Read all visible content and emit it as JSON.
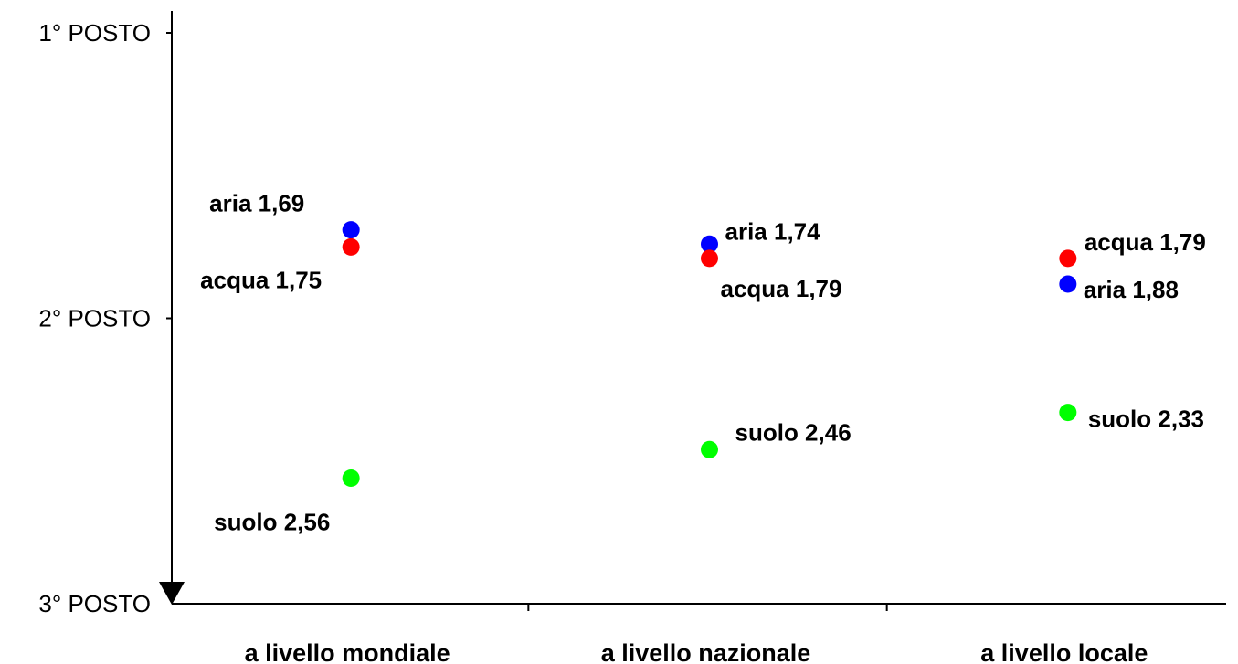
{
  "chart_data": {
    "type": "scatter",
    "categories": [
      "a livello mondiale",
      "a livello nazionale",
      "a livello locale"
    ],
    "y_axis": {
      "ticks": [
        {
          "value": 1,
          "label": "1° POSTO"
        },
        {
          "value": 2,
          "label": "2° POSTO"
        },
        {
          "value": 3,
          "label": "3° POSTO"
        }
      ],
      "ylim": [
        1,
        3
      ],
      "inverted": true
    },
    "grid": false,
    "series": [
      {
        "name": "aria",
        "color": "#0000ff",
        "values": [
          1.69,
          1.74,
          1.88
        ],
        "labels": [
          "aria 1,69",
          "aria 1,74",
          "aria 1,88"
        ]
      },
      {
        "name": "acqua",
        "color": "#ff0000",
        "values": [
          1.75,
          1.79,
          1.79
        ],
        "labels": [
          "acqua 1,75",
          "acqua 1,79",
          "acqua 1,79"
        ]
      },
      {
        "name": "suolo",
        "color": "#00ff00",
        "values": [
          2.56,
          2.46,
          2.33
        ],
        "labels": [
          "suolo 2,56",
          "suolo 2,46",
          "suolo 2,33"
        ]
      }
    ]
  }
}
